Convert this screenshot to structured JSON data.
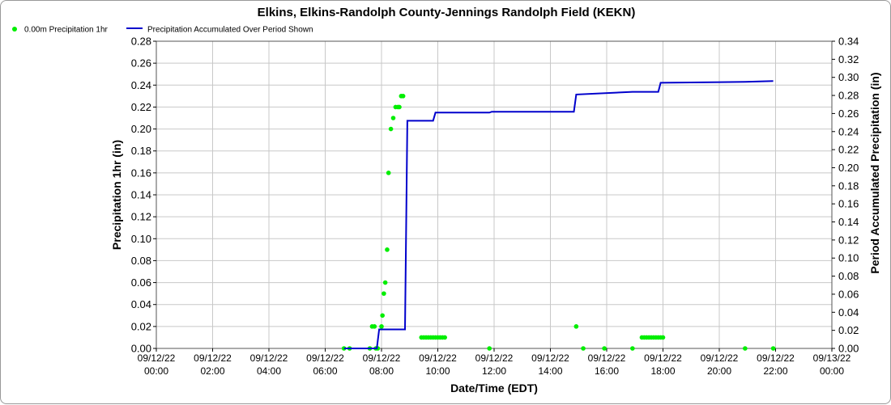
{
  "chart_data": {
    "type": "line",
    "title": "Elkins, Elkins-Randolph County-Jennings Randolph Field (KEKN)",
    "xlabel": "Date/Time (EDT)",
    "ylabel": "Precipitation 1hr (in)",
    "y2label": "Period Accumulated Precipitation (in)",
    "legend_placement": "top-left",
    "grid": true,
    "xlim_hours": [
      0,
      24
    ],
    "ylim": [
      0,
      0.28
    ],
    "y2lim": [
      0,
      0.34
    ],
    "x_ticks": [
      {
        "date": "09/12/22",
        "time": "00:00"
      },
      {
        "date": "09/12/22",
        "time": "02:00"
      },
      {
        "date": "09/12/22",
        "time": "04:00"
      },
      {
        "date": "09/12/22",
        "time": "06:00"
      },
      {
        "date": "09/12/22",
        "time": "08:00"
      },
      {
        "date": "09/12/22",
        "time": "10:00"
      },
      {
        "date": "09/12/22",
        "time": "12:00"
      },
      {
        "date": "09/12/22",
        "time": "14:00"
      },
      {
        "date": "09/12/22",
        "time": "16:00"
      },
      {
        "date": "09/12/22",
        "time": "18:00"
      },
      {
        "date": "09/12/22",
        "time": "20:00"
      },
      {
        "date": "09/12/22",
        "time": "22:00"
      },
      {
        "date": "09/13/22",
        "time": "00:00"
      }
    ],
    "y_ticks": [
      "0.00",
      "0.02",
      "0.04",
      "0.06",
      "0.08",
      "0.10",
      "0.12",
      "0.14",
      "0.16",
      "0.18",
      "0.20",
      "0.22",
      "0.24",
      "0.26",
      "0.28"
    ],
    "y2_ticks": [
      "0.00",
      "0.02",
      "0.04",
      "0.06",
      "0.08",
      "0.10",
      "0.12",
      "0.14",
      "0.16",
      "0.18",
      "0.20",
      "0.22",
      "0.24",
      "0.26",
      "0.28",
      "0.30",
      "0.32",
      "0.34"
    ],
    "series": [
      {
        "name": "0.00m Precipitation 1hr",
        "kind": "scatter",
        "axis": "left",
        "color": "#00ee00",
        "points": [
          [
            "09/12/22 06:40",
            0.0
          ],
          [
            "09/12/22 06:52",
            0.0
          ],
          [
            "09/12/22 07:35",
            0.0
          ],
          [
            "09/12/22 07:40",
            0.02
          ],
          [
            "09/12/22 07:45",
            0.02
          ],
          [
            "09/12/22 07:48",
            0.0
          ],
          [
            "09/12/22 07:52",
            0.0
          ],
          [
            "09/12/22 08:00",
            0.02
          ],
          [
            "09/12/22 08:02",
            0.03
          ],
          [
            "09/12/22 08:05",
            0.05
          ],
          [
            "09/12/22 08:08",
            0.06
          ],
          [
            "09/12/22 08:12",
            0.09
          ],
          [
            "09/12/22 08:15",
            0.16
          ],
          [
            "09/12/22 08:20",
            0.2
          ],
          [
            "09/12/22 08:25",
            0.21
          ],
          [
            "09/12/22 08:30",
            0.22
          ],
          [
            "09/12/22 08:35",
            0.22
          ],
          [
            "09/12/22 08:38",
            0.22
          ],
          [
            "09/12/22 08:42",
            0.23
          ],
          [
            "09/12/22 08:46",
            0.23
          ],
          [
            "09/12/22 09:25",
            0.01
          ],
          [
            "09/12/22 09:30",
            0.01
          ],
          [
            "09/12/22 09:35",
            0.01
          ],
          [
            "09/12/22 09:40",
            0.01
          ],
          [
            "09/12/22 09:45",
            0.01
          ],
          [
            "09/12/22 09:50",
            0.01
          ],
          [
            "09/12/22 09:55",
            0.01
          ],
          [
            "09/12/22 10:00",
            0.01
          ],
          [
            "09/12/22 10:05",
            0.01
          ],
          [
            "09/12/22 10:10",
            0.01
          ],
          [
            "09/12/22 10:15",
            0.01
          ],
          [
            "09/12/22 11:50",
            0.0
          ],
          [
            "09/12/22 14:55",
            0.02
          ],
          [
            "09/12/22 15:10",
            0.0
          ],
          [
            "09/12/22 15:55",
            0.0
          ],
          [
            "09/12/22 16:55",
            0.0
          ],
          [
            "09/12/22 17:15",
            0.01
          ],
          [
            "09/12/22 17:20",
            0.01
          ],
          [
            "09/12/22 17:25",
            0.01
          ],
          [
            "09/12/22 17:30",
            0.01
          ],
          [
            "09/12/22 17:35",
            0.01
          ],
          [
            "09/12/22 17:40",
            0.01
          ],
          [
            "09/12/22 17:45",
            0.01
          ],
          [
            "09/12/22 17:50",
            0.01
          ],
          [
            "09/12/22 17:55",
            0.01
          ],
          [
            "09/12/22 18:00",
            0.01
          ],
          [
            "09/12/22 20:55",
            0.0
          ],
          [
            "09/12/22 21:55",
            0.0
          ]
        ]
      },
      {
        "name": "Precipitation Accumulated Over Period Shown",
        "kind": "line",
        "axis": "right",
        "color": "#0000cc",
        "points": [
          [
            "09/12/22 06:40",
            0.0
          ],
          [
            "09/12/22 07:50",
            0.0
          ],
          [
            "09/12/22 07:55",
            0.021
          ],
          [
            "09/12/22 08:50",
            0.021
          ],
          [
            "09/12/22 08:55",
            0.252
          ],
          [
            "09/12/22 09:50",
            0.252
          ],
          [
            "09/12/22 09:55",
            0.261
          ],
          [
            "09/12/22 11:50",
            0.261
          ],
          [
            "09/12/22 11:55",
            0.262
          ],
          [
            "09/12/22 14:50",
            0.262
          ],
          [
            "09/12/22 14:55",
            0.281
          ],
          [
            "09/12/22 16:55",
            0.284
          ],
          [
            "09/12/22 17:50",
            0.284
          ],
          [
            "09/12/22 17:55",
            0.294
          ],
          [
            "09/12/22 20:55",
            0.295
          ],
          [
            "09/12/22 21:55",
            0.296
          ]
        ]
      }
    ]
  }
}
